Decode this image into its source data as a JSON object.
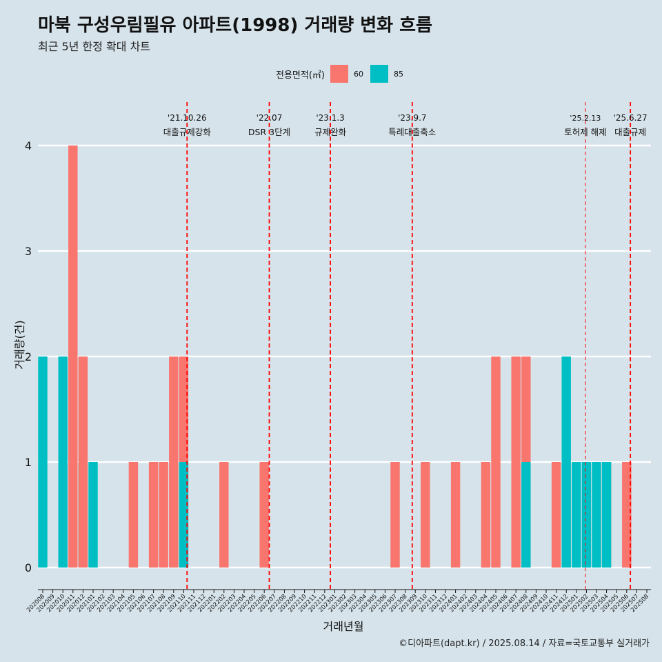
{
  "title": "마북 구성우림필유 아파트(1998) 거래량 변화 흐름",
  "subtitle": "최근 5년 한정 확대 차트",
  "caption": "©디아파트(dapt.kr) / 2025.08.14 / 자료=국토교통부 실거래가",
  "legend": {
    "title": "전용면적(㎡)",
    "items": [
      {
        "label": "60",
        "color": "#f8766d"
      },
      {
        "label": "85",
        "color": "#00bfc4"
      }
    ]
  },
  "chart_data": {
    "type": "bar",
    "xlabel": "거래년월",
    "ylabel": "거래량(건)",
    "ylim": [
      0,
      4
    ],
    "yticks": [
      0,
      1,
      2,
      3,
      4
    ],
    "grid": true,
    "legend_position": "top",
    "categories": [
      "202008",
      "202009",
      "202010",
      "202011",
      "202012",
      "202101",
      "202102",
      "202103",
      "202104",
      "202105",
      "202106",
      "202107",
      "202108",
      "202109",
      "202110",
      "202111",
      "202112",
      "202201",
      "202202",
      "202203",
      "202204",
      "202205",
      "202206",
      "202207",
      "202208",
      "202209",
      "202210",
      "202211",
      "202212",
      "202301",
      "202302",
      "202303",
      "202304",
      "202305",
      "202306",
      "202307",
      "202308",
      "202309",
      "202310",
      "202311",
      "202312",
      "202401",
      "202402",
      "202403",
      "202404",
      "202405",
      "202406",
      "202407",
      "202408",
      "202409",
      "202410",
      "202411",
      "202412",
      "202501",
      "202502",
      "202503",
      "202504",
      "202505",
      "202506",
      "202507",
      "202508"
    ],
    "bars": [
      {
        "month": "202008",
        "area": "85",
        "value": 2
      },
      {
        "month": "202010",
        "area": "60",
        "value": 1
      },
      {
        "month": "202010",
        "area": "85",
        "value": 2
      },
      {
        "month": "202011",
        "area": "60",
        "value": 4
      },
      {
        "month": "202012",
        "area": "60",
        "value": 1
      },
      {
        "month": "202012",
        "area": "85",
        "value": 1
      },
      {
        "month": "202012",
        "area": "60",
        "value": 2
      },
      {
        "month": "202101",
        "area": "85",
        "value": 1
      },
      {
        "month": "202105",
        "area": "60",
        "value": 1
      },
      {
        "month": "202107",
        "area": "60",
        "value": 1
      },
      {
        "month": "202108",
        "area": "60",
        "value": 1
      },
      {
        "month": "202109",
        "area": "60",
        "value": 2
      },
      {
        "month": "202110",
        "area": "60",
        "value": 2
      },
      {
        "month": "202110",
        "area": "85",
        "value": 1
      },
      {
        "month": "202202",
        "area": "60",
        "value": 1
      },
      {
        "month": "202206",
        "area": "60",
        "value": 1
      },
      {
        "month": "202307",
        "area": "60",
        "value": 1
      },
      {
        "month": "202310",
        "area": "60",
        "value": 1
      },
      {
        "month": "202401",
        "area": "60",
        "value": 1
      },
      {
        "month": "202404",
        "area": "60",
        "value": 1
      },
      {
        "month": "202405",
        "area": "60",
        "value": 2
      },
      {
        "month": "202407",
        "area": "60",
        "value": 2
      },
      {
        "month": "202408",
        "area": "60",
        "value": 2
      },
      {
        "month": "202408",
        "area": "85",
        "value": 1
      },
      {
        "month": "202411",
        "area": "60",
        "value": 1
      },
      {
        "month": "202412",
        "area": "85",
        "value": 2
      },
      {
        "month": "202501",
        "area": "85",
        "value": 1
      },
      {
        "month": "202502",
        "area": "85",
        "value": 1
      },
      {
        "month": "202503",
        "area": "85",
        "value": 1
      },
      {
        "month": "202504",
        "area": "60",
        "value": 1
      },
      {
        "month": "202504",
        "area": "85",
        "value": 1
      },
      {
        "month": "202506",
        "area": "60",
        "value": 1
      }
    ],
    "events": [
      {
        "date": "'21.10.26",
        "label": "대출규제강화",
        "month": "202110",
        "day": 26,
        "style": "bold"
      },
      {
        "date": "'22.07",
        "label": "DSR 3단계",
        "month": "202207",
        "day": 1,
        "style": "bold"
      },
      {
        "date": "'23.1.3",
        "label": "규제완화",
        "month": "202301",
        "day": 3,
        "style": "bold"
      },
      {
        "date": "'23.9.7",
        "label": "특례대출축소",
        "month": "202309",
        "day": 7,
        "style": "bold"
      },
      {
        "date": "'25.2.13",
        "label": "토허제 해제",
        "month": "202502",
        "day": 13,
        "style": "thin"
      },
      {
        "date": "'25.6.27",
        "label": "대출규제",
        "month": "202506",
        "day": 27,
        "style": "bold"
      }
    ]
  }
}
